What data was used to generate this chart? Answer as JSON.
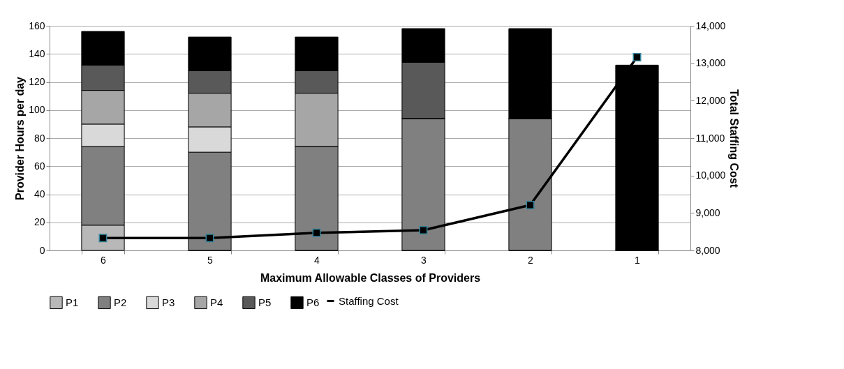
{
  "chart_data": {
    "type": "bar",
    "stacked": true,
    "xlabel": "Maximum Allowable Classes of Providers",
    "ylabel": "Provider Hours per day",
    "y2label": "Total Staffing Cost",
    "categories": [
      "6",
      "5",
      "4",
      "3",
      "2",
      "1"
    ],
    "series": [
      {
        "name": "P1",
        "color": "#b8b8b8",
        "values": [
          18,
          0,
          0,
          0,
          0,
          0
        ]
      },
      {
        "name": "P2",
        "color": "#808080",
        "values": [
          56,
          70,
          74,
          94,
          94,
          0
        ]
      },
      {
        "name": "P3",
        "color": "#d9d9d9",
        "values": [
          16,
          18,
          0,
          0,
          0,
          0
        ]
      },
      {
        "name": "P4",
        "color": "#a6a6a6",
        "values": [
          24,
          24,
          38,
          0,
          0,
          0
        ]
      },
      {
        "name": "P5",
        "color": "#595959",
        "values": [
          18,
          16,
          16,
          40,
          0,
          0
        ]
      },
      {
        "name": "P6",
        "color": "#000000",
        "values": [
          24,
          24,
          24,
          24,
          64,
          132
        ]
      },
      {
        "name": "Staffing Cost",
        "type": "line",
        "axis": "y2",
        "color": "#000000",
        "marker": "square",
        "values": [
          8330,
          8330,
          8470,
          8540,
          9210,
          13160
        ]
      }
    ],
    "ylim": [
      0,
      160
    ],
    "yticks": [
      0,
      20,
      40,
      60,
      80,
      100,
      120,
      140,
      160
    ],
    "y2lim": [
      8000,
      14000
    ],
    "y2ticks": [
      {
        "value": 8000,
        "label": "8,000"
      },
      {
        "value": 9000,
        "label": "9,000"
      },
      {
        "value": 10000,
        "label": "10,000"
      },
      {
        "value": 11000,
        "label": "11,000"
      },
      {
        "value": 12000,
        "label": "12,000"
      },
      {
        "value": 13000,
        "label": "13,000"
      },
      {
        "value": 14000,
        "label": "14,000"
      }
    ],
    "grid": "y",
    "legend": "bottom"
  }
}
